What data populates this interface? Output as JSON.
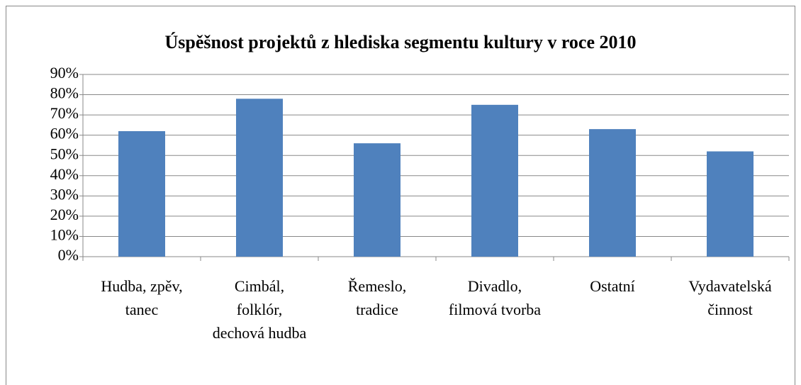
{
  "chart_data": {
    "type": "bar",
    "title": "Úspěšnost projektů z hlediska segmentu kultury v roce 2010",
    "categories": [
      "Hudba, zpěv, tanec",
      "Cimbál, folklór, dechová hudba",
      "Řemeslo, tradice",
      "Divadlo, filmová tvorba",
      "Ostatní",
      "Vydavatelská činnost"
    ],
    "values": [
      62,
      78,
      56,
      75,
      63,
      52
    ],
    "color": "#4f81bd",
    "ylim": [
      0,
      90
    ],
    "yticks": [
      {
        "value": 0,
        "label": "0%"
      },
      {
        "value": 10,
        "label": "10%"
      },
      {
        "value": 20,
        "label": "20%"
      },
      {
        "value": 30,
        "label": "30%"
      },
      {
        "value": 40,
        "label": "40%"
      },
      {
        "value": 50,
        "label": "50%"
      },
      {
        "value": 60,
        "label": "60%"
      },
      {
        "value": 70,
        "label": "70%"
      },
      {
        "value": 80,
        "label": "80%"
      },
      {
        "value": 90,
        "label": "90%"
      }
    ],
    "grid": true
  }
}
